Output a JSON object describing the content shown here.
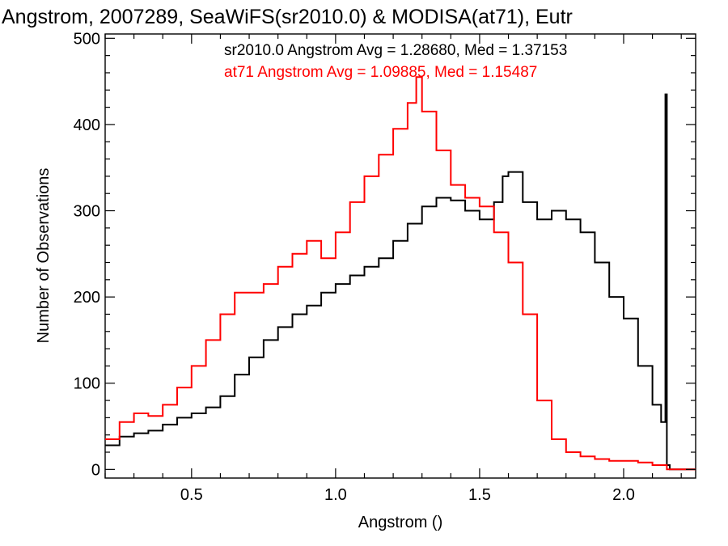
{
  "chart_data": {
    "type": "histogram-step",
    "title": "Angstrom, 2007289, SeaWiFS(sr2010.0) & MODISA(at71), Eutr",
    "xlabel": "Angstrom ()",
    "ylabel": "Number of Observations",
    "xlim": [
      0.2,
      2.25
    ],
    "ylim": [
      -10,
      505
    ],
    "x_ticks": [
      0.5,
      1.0,
      1.5,
      2.0
    ],
    "x_tick_labels": [
      "0.5",
      "1.0",
      "1.5",
      "2.0"
    ],
    "y_ticks": [
      0,
      100,
      200,
      300,
      400,
      500
    ],
    "y_tick_labels": [
      "0",
      "100",
      "200",
      "300",
      "400",
      "500"
    ],
    "grid": false,
    "legend": {
      "placement": "top-right"
    },
    "series": [
      {
        "name": "sr2010.0",
        "color": "#000000",
        "stats_text": "sr2010.0 Angstrom Avg = 1.28680, Med = 1.37153",
        "x": [
          0.2,
          0.25,
          0.3,
          0.35,
          0.4,
          0.45,
          0.5,
          0.55,
          0.6,
          0.65,
          0.7,
          0.75,
          0.8,
          0.85,
          0.9,
          0.95,
          1.0,
          1.05,
          1.1,
          1.15,
          1.2,
          1.25,
          1.3,
          1.35,
          1.4,
          1.45,
          1.5,
          1.55,
          1.58,
          1.6,
          1.65,
          1.7,
          1.75,
          1.8,
          1.85,
          1.9,
          1.95,
          2.0,
          2.05,
          2.1,
          2.13,
          2.145,
          2.15,
          2.16,
          2.25
        ],
        "y": [
          28,
          38,
          42,
          45,
          52,
          60,
          65,
          72,
          85,
          110,
          130,
          150,
          165,
          180,
          190,
          205,
          215,
          225,
          235,
          245,
          265,
          285,
          305,
          315,
          312,
          300,
          290,
          310,
          340,
          345,
          310,
          290,
          300,
          290,
          275,
          240,
          200,
          175,
          120,
          75,
          55,
          435,
          5,
          0,
          0
        ]
      },
      {
        "name": "at71",
        "color": "#ff0000",
        "stats_text": "at71 Angstrom Avg = 1.09885, Med = 1.15487",
        "x": [
          0.2,
          0.25,
          0.3,
          0.35,
          0.4,
          0.45,
          0.5,
          0.55,
          0.6,
          0.65,
          0.7,
          0.75,
          0.8,
          0.85,
          0.9,
          0.95,
          1.0,
          1.05,
          1.1,
          1.15,
          1.2,
          1.25,
          1.28,
          1.3,
          1.35,
          1.4,
          1.45,
          1.5,
          1.55,
          1.6,
          1.65,
          1.7,
          1.75,
          1.8,
          1.85,
          1.9,
          1.95,
          2.0,
          2.05,
          2.1,
          2.15,
          2.25
        ],
        "y": [
          35,
          55,
          65,
          62,
          75,
          95,
          120,
          150,
          180,
          205,
          205,
          215,
          235,
          250,
          265,
          245,
          275,
          310,
          340,
          365,
          395,
          425,
          455,
          415,
          370,
          330,
          315,
          305,
          275,
          240,
          180,
          80,
          35,
          20,
          15,
          12,
          10,
          10,
          8,
          5,
          0,
          0
        ]
      }
    ]
  }
}
